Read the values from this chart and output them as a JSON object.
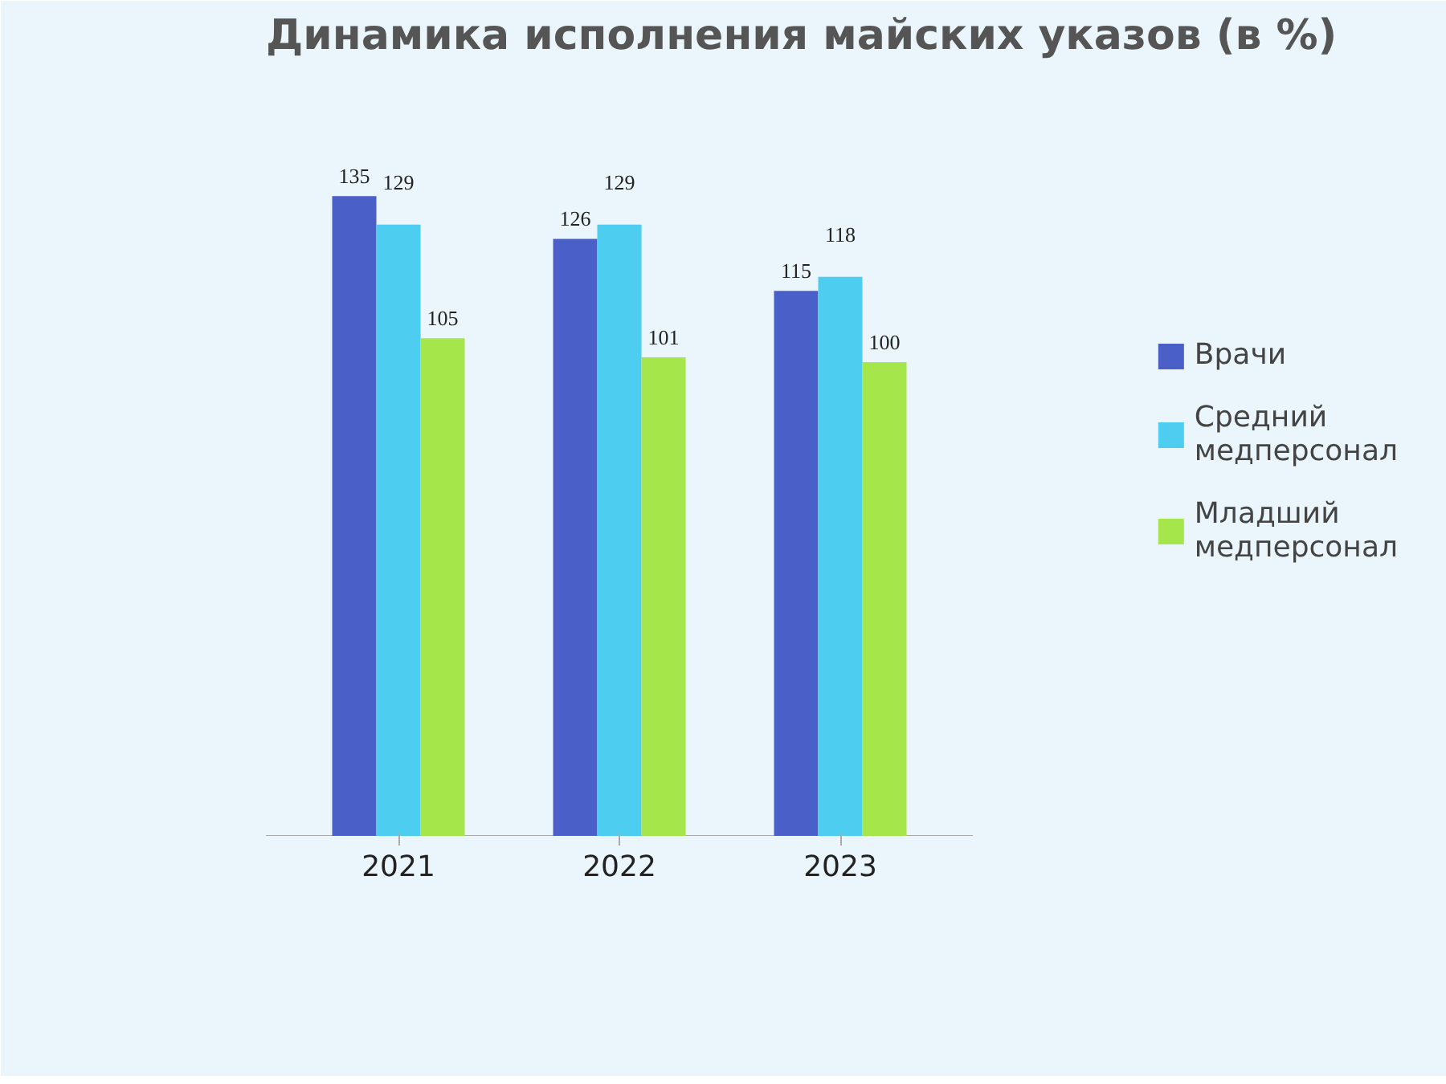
{
  "chart_data": {
    "type": "bar",
    "title": "Динамика исполнения майских указов (в %)",
    "categories": [
      "2021",
      "2022",
      "2023"
    ],
    "series": [
      {
        "name": "Врачи",
        "color": "#4a5fc8",
        "values": [
          135,
          126,
          115
        ]
      },
      {
        "name": "Средний медперсонал",
        "color": "#4dcdf0",
        "values": [
          129,
          129,
          118
        ]
      },
      {
        "name": "Младший медперсонал",
        "color": "#a5e64a",
        "values": [
          105,
          101,
          100
        ]
      }
    ],
    "data_labels": true,
    "legend": "right",
    "grid": false
  }
}
